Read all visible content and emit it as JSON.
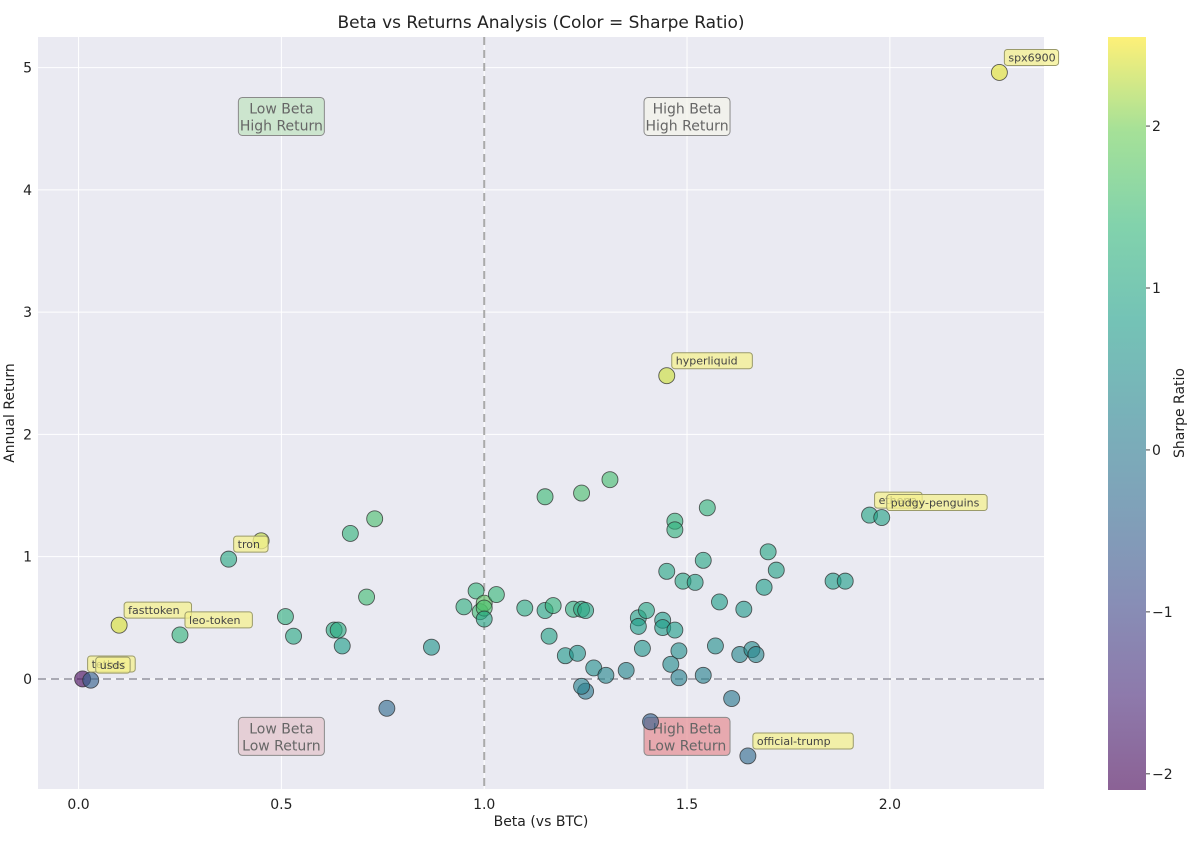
{
  "chart_data": {
    "type": "scatter",
    "title": "Beta vs Returns Analysis (Color = Sharpe Ratio)",
    "xlabel": "Beta (vs BTC)",
    "ylabel": "Annual Return",
    "xlim": [
      -0.1,
      2.38
    ],
    "ylim": [
      -0.9,
      5.25
    ],
    "xticks": [
      "0.0",
      "0.5",
      "1.0",
      "1.5",
      "2.0"
    ],
    "yticks": [
      "0",
      "1",
      "2",
      "3",
      "4",
      "5"
    ],
    "grid": true,
    "reference_lines": {
      "x": 1.0,
      "y": 0
    },
    "colorbar": {
      "label": "Sharpe Ratio",
      "range": [
        -2.1,
        2.55
      ],
      "ticks": [
        "−2",
        "−1",
        "0",
        "1",
        "2"
      ],
      "colormap": "viridis"
    },
    "quadrant_labels": [
      {
        "line1": "Low Beta",
        "line2": "High Return",
        "x": 0.5,
        "y": 4.6,
        "color": "#bfe3bf"
      },
      {
        "line1": "High Beta",
        "line2": "High Return",
        "x": 1.5,
        "y": 4.6,
        "color": "#f3f3ea"
      },
      {
        "line1": "Low Beta",
        "line2": "Low Return",
        "x": 0.5,
        "y": -0.47,
        "color": "#e3c3cb"
      },
      {
        "line1": "High Beta",
        "line2": "Low Return",
        "x": 1.5,
        "y": -0.47,
        "color": "#e58d93"
      }
    ],
    "annotations": [
      {
        "label": "spx6900",
        "x": 2.27,
        "y": 4.96
      },
      {
        "label": "hyperliquid",
        "x": 1.45,
        "y": 2.48
      },
      {
        "label": "ethena",
        "x": 1.95,
        "y": 1.34
      },
      {
        "label": "pudgy-penguins",
        "x": 1.98,
        "y": 1.32
      },
      {
        "label": "tron",
        "x": 0.37,
        "y": 0.98
      },
      {
        "label": "fasttoken",
        "x": 0.1,
        "y": 0.44
      },
      {
        "label": "leo-token",
        "x": 0.25,
        "y": 0.36
      },
      {
        "label": "tether",
        "x": 0.01,
        "y": 0.0
      },
      {
        "label": "usds",
        "x": 0.03,
        "y": -0.01
      },
      {
        "label": "official-trump",
        "x": 1.65,
        "y": -0.63
      }
    ],
    "points": [
      {
        "name": "spx6900",
        "x": 2.27,
        "y": 4.96,
        "sharpe": 2.45
      },
      {
        "name": "hyperliquid",
        "x": 1.45,
        "y": 2.48,
        "sharpe": 2.35
      },
      {
        "name": "ethena",
        "x": 1.95,
        "y": 1.34,
        "sharpe": 0.95
      },
      {
        "name": "pudgy-penguins",
        "x": 1.98,
        "y": 1.32,
        "sharpe": 0.9
      },
      {
        "name": "tron",
        "x": 0.37,
        "y": 0.98,
        "sharpe": 1.05
      },
      {
        "name": "",
        "x": 0.45,
        "y": 1.13,
        "sharpe": 2.3
      },
      {
        "name": "fasttoken",
        "x": 0.1,
        "y": 0.44,
        "sharpe": 2.4
      },
      {
        "name": "leo-token",
        "x": 0.25,
        "y": 0.36,
        "sharpe": 1.3
      },
      {
        "name": "tether",
        "x": 0.01,
        "y": 0.0,
        "sharpe": -2.0
      },
      {
        "name": "usds",
        "x": 0.03,
        "y": -0.01,
        "sharpe": -0.5
      },
      {
        "name": "official-trump",
        "x": 1.65,
        "y": -0.63,
        "sharpe": -0.3
      },
      {
        "name": "",
        "x": 0.51,
        "y": 0.51,
        "sharpe": 1.2
      },
      {
        "name": "",
        "x": 0.53,
        "y": 0.35,
        "sharpe": 1.05
      },
      {
        "name": "",
        "x": 0.63,
        "y": 0.4,
        "sharpe": 1.1
      },
      {
        "name": "",
        "x": 0.64,
        "y": 0.4,
        "sharpe": 1.1
      },
      {
        "name": "",
        "x": 0.65,
        "y": 0.27,
        "sharpe": 0.8
      },
      {
        "name": "",
        "x": 0.67,
        "y": 1.19,
        "sharpe": 1.3
      },
      {
        "name": "",
        "x": 0.71,
        "y": 0.67,
        "sharpe": 1.5
      },
      {
        "name": "",
        "x": 0.73,
        "y": 1.31,
        "sharpe": 1.6
      },
      {
        "name": "",
        "x": 0.76,
        "y": -0.24,
        "sharpe": -0.3
      },
      {
        "name": "",
        "x": 0.87,
        "y": 0.26,
        "sharpe": 0.6
      },
      {
        "name": "",
        "x": 0.95,
        "y": 0.59,
        "sharpe": 1.2
      },
      {
        "name": "",
        "x": 0.98,
        "y": 0.72,
        "sharpe": 1.35
      },
      {
        "name": "",
        "x": 0.99,
        "y": 0.55,
        "sharpe": 1.5
      },
      {
        "name": "",
        "x": 1.0,
        "y": 0.62,
        "sharpe": 1.8
      },
      {
        "name": "",
        "x": 1.0,
        "y": 0.58,
        "sharpe": 1.6
      },
      {
        "name": "",
        "x": 1.0,
        "y": 0.49,
        "sharpe": 1.0
      },
      {
        "name": "",
        "x": 1.03,
        "y": 0.69,
        "sharpe": 1.4
      },
      {
        "name": "",
        "x": 1.1,
        "y": 0.58,
        "sharpe": 1.1
      },
      {
        "name": "",
        "x": 1.15,
        "y": 1.49,
        "sharpe": 1.45
      },
      {
        "name": "",
        "x": 1.15,
        "y": 0.56,
        "sharpe": 1.0
      },
      {
        "name": "",
        "x": 1.16,
        "y": 0.35,
        "sharpe": 0.9
      },
      {
        "name": "",
        "x": 1.17,
        "y": 0.6,
        "sharpe": 1.3
      },
      {
        "name": "",
        "x": 1.2,
        "y": 0.19,
        "sharpe": 0.7
      },
      {
        "name": "",
        "x": 1.22,
        "y": 0.57,
        "sharpe": 1.2
      },
      {
        "name": "",
        "x": 1.23,
        "y": 0.21,
        "sharpe": 0.6
      },
      {
        "name": "",
        "x": 1.24,
        "y": 1.52,
        "sharpe": 1.6
      },
      {
        "name": "",
        "x": 1.24,
        "y": 0.57,
        "sharpe": 1.1
      },
      {
        "name": "",
        "x": 1.25,
        "y": 0.56,
        "sharpe": 1.0
      },
      {
        "name": "",
        "x": 1.25,
        "y": -0.1,
        "sharpe": 0.0
      },
      {
        "name": "",
        "x": 1.24,
        "y": -0.06,
        "sharpe": 0.2
      },
      {
        "name": "",
        "x": 1.27,
        "y": 0.09,
        "sharpe": 0.5
      },
      {
        "name": "",
        "x": 1.31,
        "y": 1.63,
        "sharpe": 1.55
      },
      {
        "name": "",
        "x": 1.3,
        "y": 0.03,
        "sharpe": 0.3
      },
      {
        "name": "",
        "x": 1.35,
        "y": 0.07,
        "sharpe": 0.3
      },
      {
        "name": "",
        "x": 1.38,
        "y": 0.5,
        "sharpe": 0.9
      },
      {
        "name": "",
        "x": 1.38,
        "y": 0.43,
        "sharpe": 0.8
      },
      {
        "name": "",
        "x": 1.39,
        "y": 0.25,
        "sharpe": 0.6
      },
      {
        "name": "",
        "x": 1.4,
        "y": 0.56,
        "sharpe": 1.0
      },
      {
        "name": "",
        "x": 1.41,
        "y": -0.35,
        "sharpe": -0.5
      },
      {
        "name": "",
        "x": 1.44,
        "y": 0.48,
        "sharpe": 0.8
      },
      {
        "name": "",
        "x": 1.44,
        "y": 0.42,
        "sharpe": 0.8
      },
      {
        "name": "",
        "x": 1.45,
        "y": 0.88,
        "sharpe": 1.0
      },
      {
        "name": "",
        "x": 1.46,
        "y": 0.12,
        "sharpe": 0.4
      },
      {
        "name": "",
        "x": 1.47,
        "y": 1.29,
        "sharpe": 1.3
      },
      {
        "name": "",
        "x": 1.47,
        "y": 1.22,
        "sharpe": 1.25
      },
      {
        "name": "",
        "x": 1.47,
        "y": 0.4,
        "sharpe": 0.8
      },
      {
        "name": "",
        "x": 1.48,
        "y": 0.23,
        "sharpe": 0.5
      },
      {
        "name": "",
        "x": 1.48,
        "y": 0.01,
        "sharpe": 0.2
      },
      {
        "name": "",
        "x": 1.49,
        "y": 0.8,
        "sharpe": 1.0
      },
      {
        "name": "",
        "x": 1.52,
        "y": 0.79,
        "sharpe": 0.9
      },
      {
        "name": "",
        "x": 1.54,
        "y": 0.97,
        "sharpe": 1.0
      },
      {
        "name": "",
        "x": 1.54,
        "y": 0.03,
        "sharpe": 0.2
      },
      {
        "name": "",
        "x": 1.55,
        "y": 1.4,
        "sharpe": 1.3
      },
      {
        "name": "",
        "x": 1.57,
        "y": 0.27,
        "sharpe": 0.5
      },
      {
        "name": "",
        "x": 1.58,
        "y": 0.63,
        "sharpe": 0.8
      },
      {
        "name": "",
        "x": 1.61,
        "y": -0.16,
        "sharpe": 0.0
      },
      {
        "name": "",
        "x": 1.63,
        "y": 0.2,
        "sharpe": 0.3
      },
      {
        "name": "",
        "x": 1.64,
        "y": 0.57,
        "sharpe": 0.7
      },
      {
        "name": "",
        "x": 1.66,
        "y": 0.24,
        "sharpe": 0.4
      },
      {
        "name": "",
        "x": 1.67,
        "y": 0.2,
        "sharpe": 0.3
      },
      {
        "name": "",
        "x": 1.69,
        "y": 0.75,
        "sharpe": 0.8
      },
      {
        "name": "",
        "x": 1.7,
        "y": 1.04,
        "sharpe": 1.0
      },
      {
        "name": "",
        "x": 1.72,
        "y": 0.89,
        "sharpe": 0.9
      },
      {
        "name": "",
        "x": 1.86,
        "y": 0.8,
        "sharpe": 0.8
      },
      {
        "name": "",
        "x": 1.89,
        "y": 0.8,
        "sharpe": 0.8
      }
    ]
  }
}
